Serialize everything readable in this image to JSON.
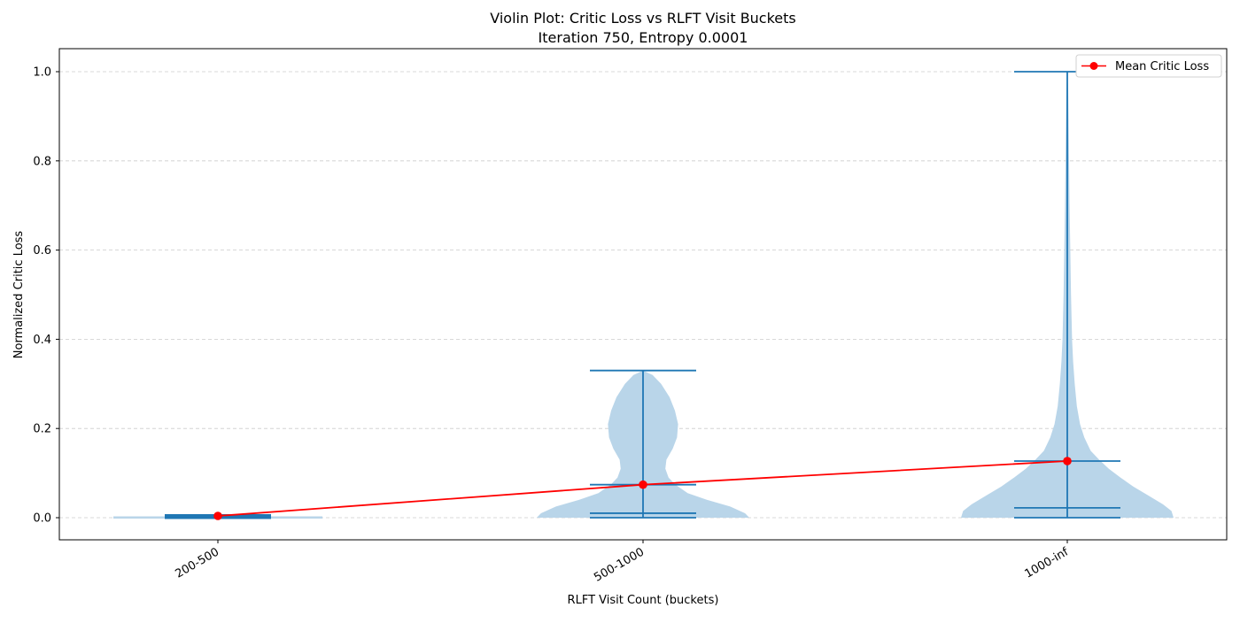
{
  "chart_data": {
    "type": "violin",
    "title": "Violin Plot: Critic Loss vs RLFT Visit Buckets",
    "subtitle": "Iteration 750, Entropy 0.0001",
    "xlabel": "RLFT Visit Count (buckets)",
    "ylabel": "Normalized Critic Loss",
    "categories": [
      "200-500",
      "500-1000",
      "1000-inf"
    ],
    "ylim": [
      -0.05,
      1.05
    ],
    "yticks": [
      0.0,
      0.2,
      0.4,
      0.6,
      0.8,
      1.0
    ],
    "ytick_labels": [
      "0.0",
      "0.2",
      "0.4",
      "0.6",
      "0.8",
      "1.0"
    ],
    "grid": "horizontal dashed",
    "legend_position": "top-right",
    "violins": [
      {
        "category": "200-500",
        "min": 0.0,
        "max": 0.006,
        "median": 0.003,
        "mean": 0.004,
        "profile": [
          [
            0.0,
            0.95
          ],
          [
            0.002,
            1.0
          ],
          [
            0.004,
            0.98
          ],
          [
            0.006,
            0.6
          ]
        ]
      },
      {
        "category": "500-1000",
        "min": 0.0,
        "max": 0.33,
        "median": 0.01,
        "mean": 0.074,
        "profile": [
          [
            0.0,
            1.0
          ],
          [
            0.01,
            0.96
          ],
          [
            0.025,
            0.82
          ],
          [
            0.04,
            0.6
          ],
          [
            0.055,
            0.42
          ],
          [
            0.075,
            0.3
          ],
          [
            0.09,
            0.24
          ],
          [
            0.11,
            0.21
          ],
          [
            0.13,
            0.22
          ],
          [
            0.155,
            0.28
          ],
          [
            0.18,
            0.32
          ],
          [
            0.21,
            0.33
          ],
          [
            0.24,
            0.3
          ],
          [
            0.27,
            0.25
          ],
          [
            0.3,
            0.17
          ],
          [
            0.32,
            0.09
          ],
          [
            0.33,
            0.0
          ]
        ]
      },
      {
        "category": "1000-inf",
        "min": 0.0,
        "max": 1.0,
        "median": 0.022,
        "mean": 0.127,
        "profile": [
          [
            0.0,
            1.0
          ],
          [
            0.015,
            0.98
          ],
          [
            0.03,
            0.9
          ],
          [
            0.05,
            0.76
          ],
          [
            0.07,
            0.62
          ],
          [
            0.09,
            0.5
          ],
          [
            0.11,
            0.39
          ],
          [
            0.13,
            0.3
          ],
          [
            0.15,
            0.22
          ],
          [
            0.18,
            0.16
          ],
          [
            0.21,
            0.12
          ],
          [
            0.25,
            0.09
          ],
          [
            0.3,
            0.07
          ],
          [
            0.35,
            0.055
          ],
          [
            0.4,
            0.045
          ],
          [
            0.5,
            0.035
          ],
          [
            0.6,
            0.028
          ],
          [
            0.7,
            0.022
          ],
          [
            0.8,
            0.017
          ],
          [
            0.9,
            0.012
          ],
          [
            0.96,
            0.008
          ],
          [
            1.0,
            0.0
          ]
        ]
      }
    ],
    "series": [
      {
        "name": "Mean Critic Loss",
        "color": "#ff0000",
        "x": [
          "200-500",
          "500-1000",
          "1000-inf"
        ],
        "values": [
          0.004,
          0.074,
          0.127
        ]
      }
    ],
    "colors": {
      "violin_fill": "#b9d5e9",
      "violin_lines": "#1f77b4",
      "mean_line": "#ff0000",
      "grid": "#cccccc"
    }
  }
}
